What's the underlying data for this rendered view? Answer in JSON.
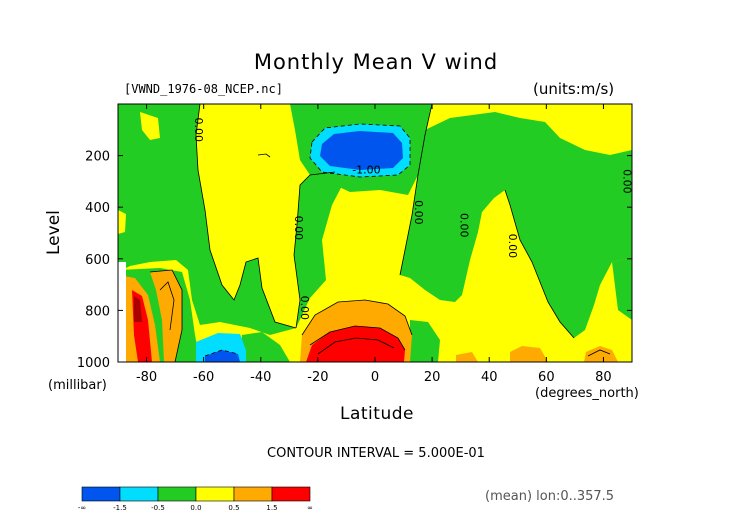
{
  "chart_data": {
    "type": "contour",
    "title": "Monthly Mean V wind",
    "file_label": "[VWND_1976-08_NCEP.nc]",
    "units_label": "(units:m/s)",
    "xlabel": "Latitude",
    "x_unit_label": "(degrees_north)",
    "ylabel": "Level",
    "y_unit_label": "(millibar)",
    "xlim": [
      -90,
      90
    ],
    "ylim": [
      1000,
      0
    ],
    "x_ticks": [
      -80,
      -60,
      -40,
      -20,
      0,
      20,
      40,
      60,
      80
    ],
    "x_tick_labels": [
      "-80",
      "-60",
      "-40",
      "-20",
      "0",
      "20",
      "40",
      "60",
      "80"
    ],
    "y_ticks": [
      200,
      400,
      600,
      800,
      1000
    ],
    "y_tick_labels": [
      "200",
      "400",
      "600",
      "800",
      "1000"
    ],
    "contour_interval_text": "CONTOUR INTERVAL = 5.000E-01",
    "averaging_note": "(mean) lon:0..357.5",
    "contour_labels": [
      {
        "text": "-1.00",
        "lat": -3,
        "lev": 270
      },
      {
        "text": "0.00",
        "lat": -28,
        "lev": 480
      },
      {
        "text": "0.00",
        "lat": 14,
        "lev": 420
      },
      {
        "text": "0.00",
        "lat": 30,
        "lev": 470
      },
      {
        "text": "0.00",
        "lat": 47,
        "lev": 550
      },
      {
        "text": "0.00",
        "lat": 87,
        "lev": 300
      },
      {
        "text": "0.00",
        "lat": -63,
        "lev": 100
      },
      {
        "text": "0.00",
        "lat": -26,
        "lev": 790
      }
    ],
    "colorbar": {
      "colors": [
        "#0055ee",
        "#00ddff",
        "#22cc22",
        "#ffff00",
        "#ffaa00",
        "#ff0000"
      ],
      "tick_labels": [
        "-∞",
        "-1.5",
        "-0.5",
        "0.0",
        "0.5",
        "1.5",
        "∞"
      ]
    }
  }
}
